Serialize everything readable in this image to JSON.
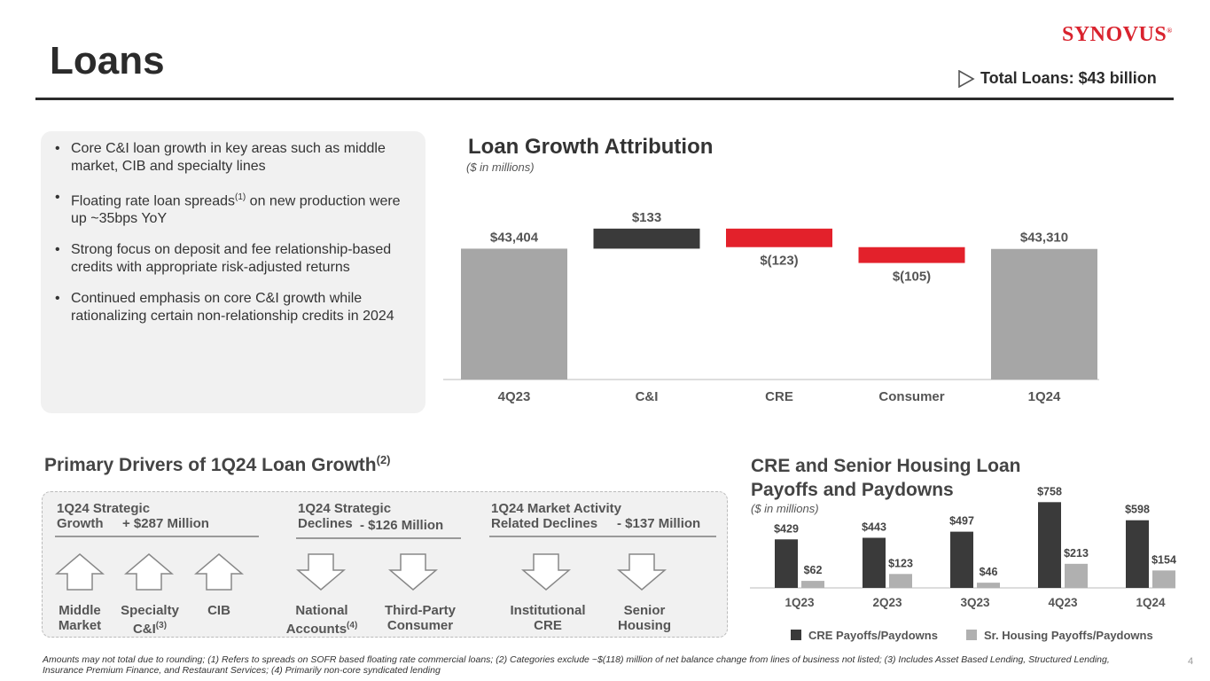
{
  "header": {
    "title": "Loans",
    "logo": "SYNOVUS",
    "logo_mark": "®",
    "total_loans": "Total Loans: $43 billion"
  },
  "bullets": [
    "Core C&I loan growth in key areas such as middle market, CIB and specialty lines",
    "Floating rate loan spreads",
    "(1)",
    " on new production were up ~35bps YoY",
    "Strong focus on deposit and fee relationship-based credits with appropriate risk-adjusted returns",
    "Continued emphasis on core C&I growth while rationalizing certain non-relationship credits in 2024"
  ],
  "waterfall": {
    "title": "Loan Growth Attribution",
    "subtitle": "($ in millions)"
  },
  "drivers": {
    "title": "Primary Drivers of 1Q24 Loan Growth",
    "title_sup": "(2)",
    "groups": [
      {
        "label1": "1Q24 Strategic",
        "label2": "Growth",
        "amount": "+ $287 Million",
        "items": [
          {
            "l1": "Middle",
            "l2": "Market",
            "sup": ""
          },
          {
            "l1": "Specialty",
            "l2": "C&I",
            "sup": "(3)"
          },
          {
            "l1": "CIB",
            "l2": "",
            "sup": ""
          }
        ]
      },
      {
        "label1": "1Q24 Strategic",
        "label2": "Declines",
        "amount": "- $126 Million",
        "items": [
          {
            "l1": "National",
            "l2": "Accounts",
            "sup": "(4)"
          },
          {
            "l1": "Third-Party",
            "l2": "Consumer",
            "sup": ""
          }
        ]
      },
      {
        "label1": "1Q24 Market Activity",
        "label2": "Related Declines",
        "amount": "- $137 Million",
        "items": [
          {
            "l1": "Institutional",
            "l2": "CRE",
            "sup": ""
          },
          {
            "l1": "Senior",
            "l2": "Housing",
            "sup": ""
          }
        ]
      }
    ]
  },
  "cre": {
    "title": "CRE and Senior Housing Loan Payoffs and Paydowns",
    "subtitle": "($ in millions)"
  },
  "chart_data": [
    {
      "type": "bar",
      "title": "Loan Growth Attribution",
      "subtitle": "($ in millions)",
      "categories": [
        "4Q23",
        "C&I",
        "CRE",
        "Consumer",
        "1Q24"
      ],
      "values": [
        43404,
        133,
        -123,
        -105,
        43310
      ],
      "labels": [
        "$43,404",
        "$133",
        "$(123)",
        "$(105)",
        "$43,310"
      ],
      "bar_kinds": [
        "total",
        "delta",
        "delta",
        "delta",
        "total"
      ],
      "colors": {
        "total": "#a6a6a6",
        "increase": "#3a3a3a",
        "decrease": "#e3212b"
      }
    },
    {
      "type": "bar",
      "title": "CRE and Senior Housing Loan Payoffs and Paydowns",
      "subtitle": "($ in millions)",
      "categories": [
        "1Q23",
        "2Q23",
        "3Q23",
        "4Q23",
        "1Q24"
      ],
      "series": [
        {
          "name": "CRE Payoffs/Paydowns",
          "values": [
            429,
            443,
            497,
            758,
            598
          ],
          "labels": [
            "$429",
            "$443",
            "$497",
            "$758",
            "$598"
          ],
          "color": "#3a3a3a"
        },
        {
          "name": "Sr. Housing Payoffs/Paydowns",
          "values": [
            62,
            123,
            46,
            213,
            154
          ],
          "labels": [
            "$62",
            "$123",
            "$46",
            "$213",
            "$154"
          ],
          "color": "#b0b0b0"
        }
      ],
      "ylim": [
        0,
        800
      ]
    }
  ],
  "footnote": "Amounts may not total due to rounding; (1) Refers to spreads on SOFR based floating rate commercial loans; (2) Categories exclude ~$(118) million of net balance change from lines of business not listed; (3) Includes Asset Based Lending, Structured Lending, Insurance Premium Finance, and Restaurant Services; (4) Primarily non-core syndicated lending",
  "page_number": "4"
}
